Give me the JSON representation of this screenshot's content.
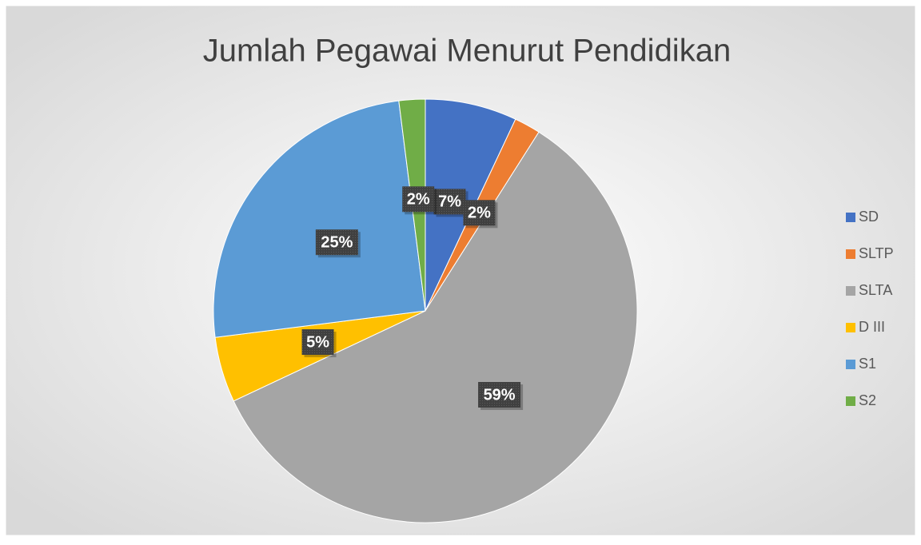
{
  "chart_data": {
    "type": "pie",
    "title": "Jumlah Pegawai Menurut Pendidikan",
    "categories": [
      "SD",
      "SLTP",
      "SLTA",
      "D III",
      "S1",
      "S2"
    ],
    "values": [
      7,
      2,
      59,
      5,
      25,
      2
    ],
    "value_labels": [
      "7%",
      "2%",
      "59%",
      "5%",
      "25%",
      "2%"
    ],
    "colors": [
      "#4472c4",
      "#ed7d31",
      "#a5a5a5",
      "#ffc000",
      "#5b9bd5",
      "#70ad47"
    ],
    "legend": "right"
  }
}
